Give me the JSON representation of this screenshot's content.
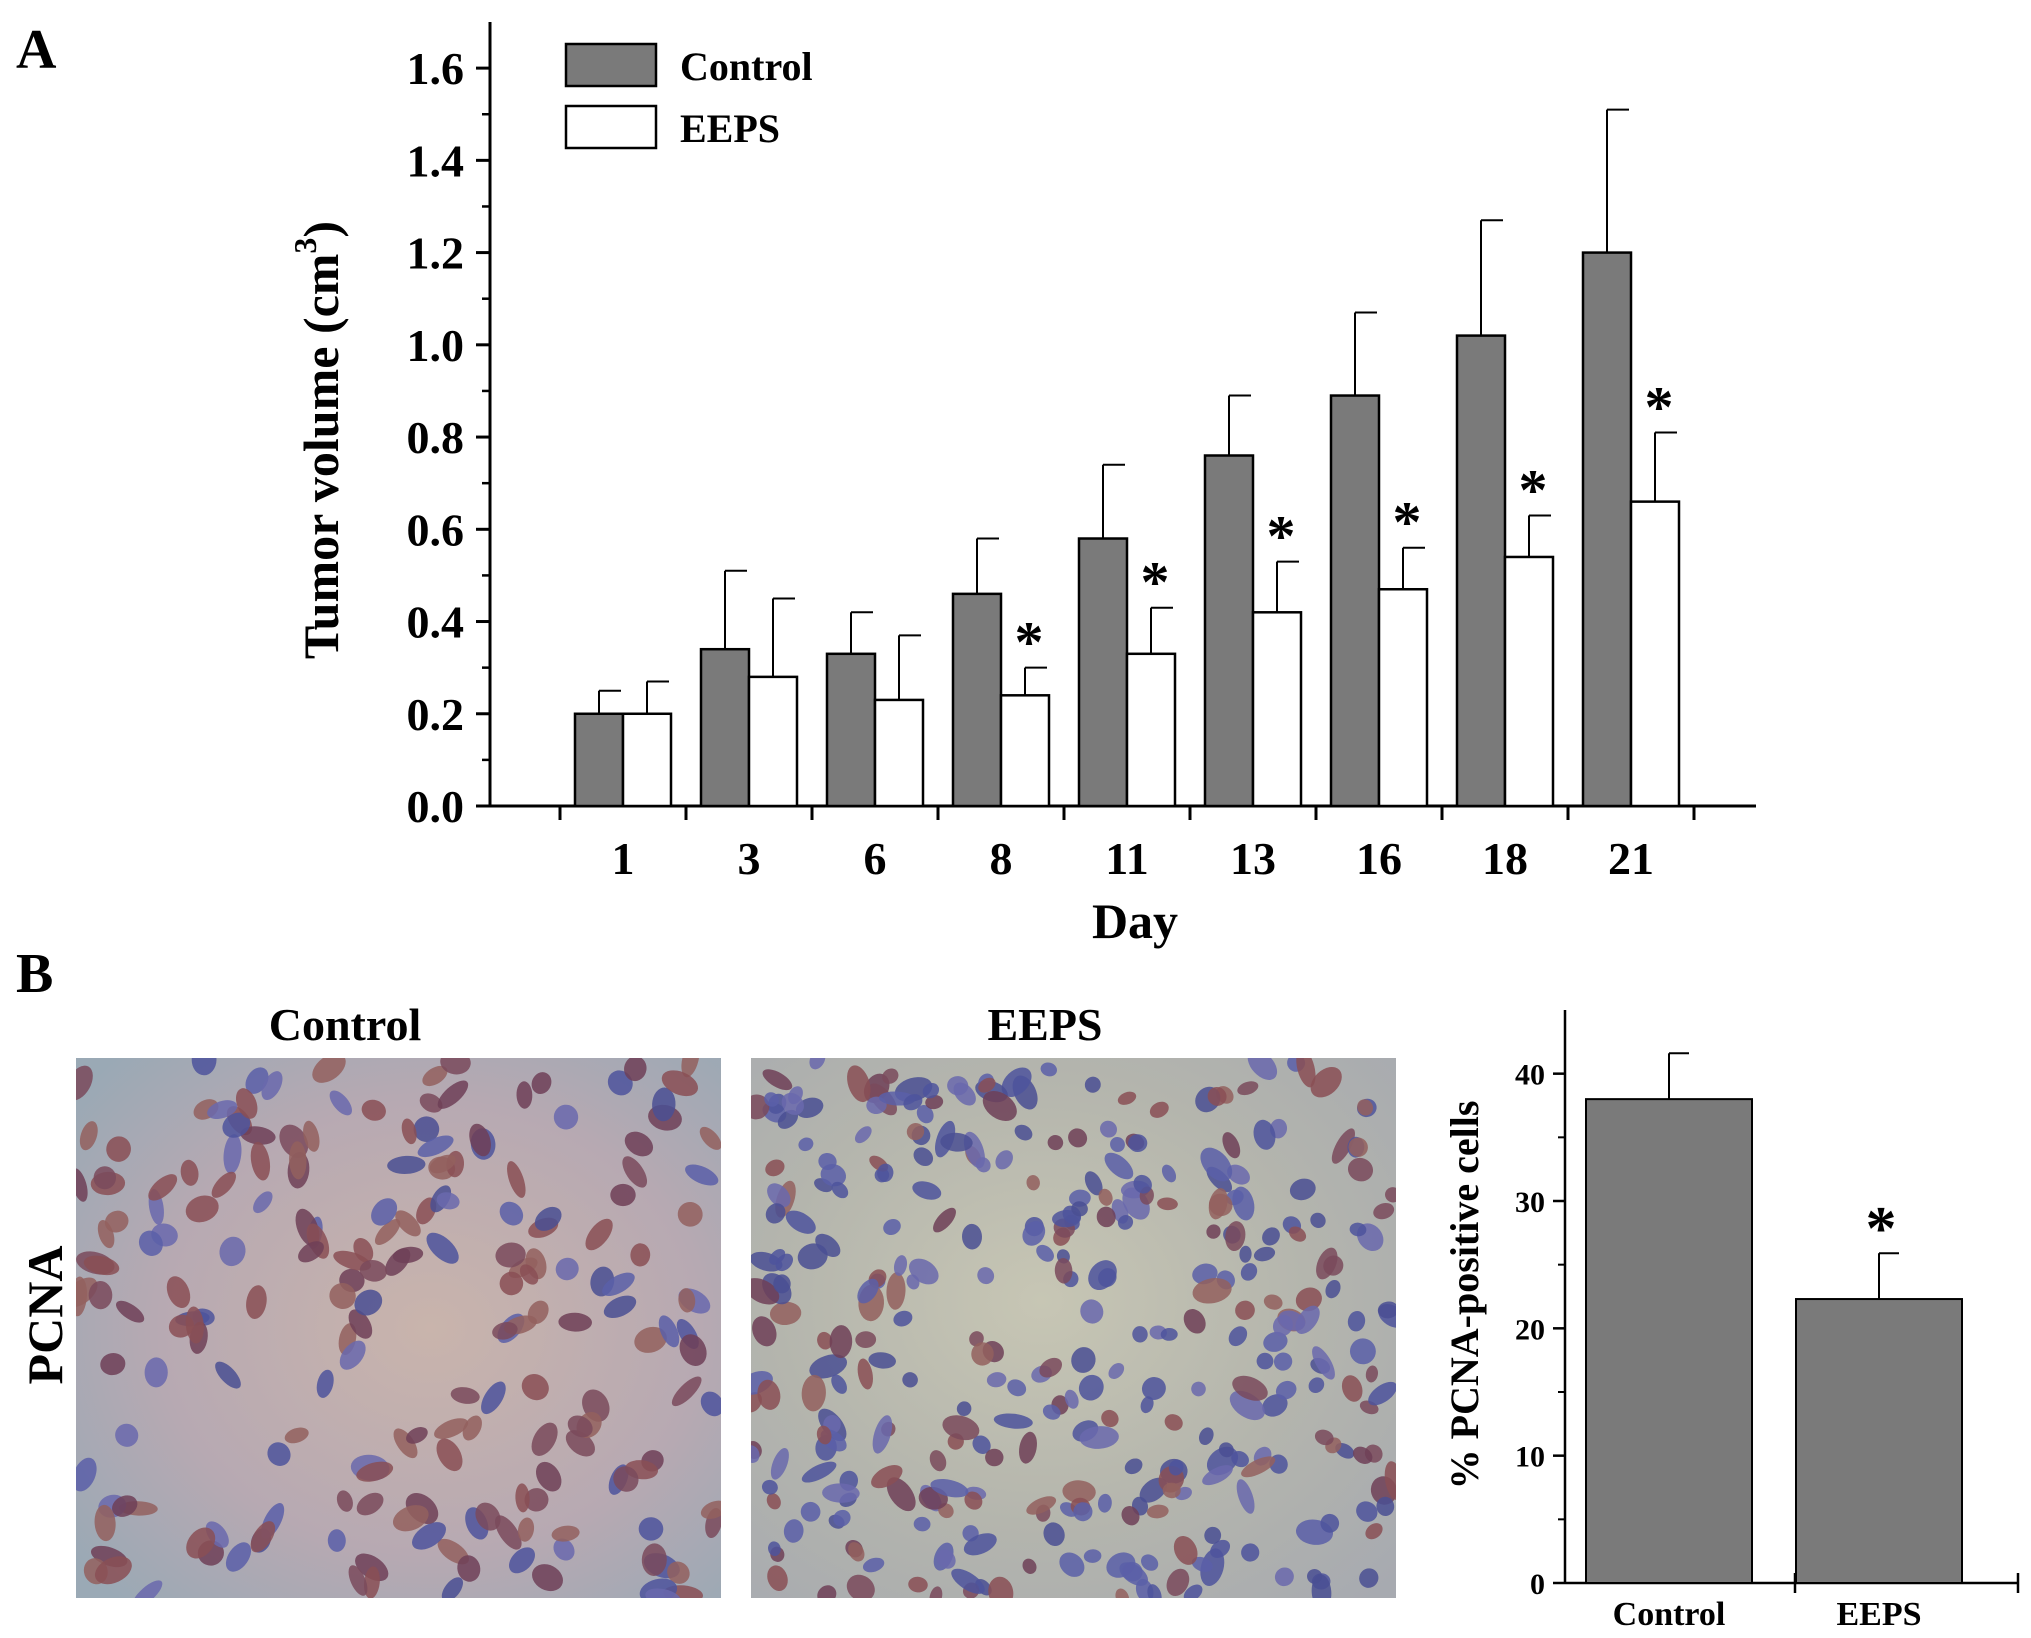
{
  "panel_a": {
    "letter": "A",
    "chart_data": {
      "type": "bar",
      "xlabel": "Day",
      "ylabel": "Tumor volume (cm",
      "ylabel_superscript": "3",
      "ylabel_close": ")",
      "ylim": [
        0.0,
        1.7
      ],
      "yticks": [
        "0.0",
        "0.2",
        "0.4",
        "0.6",
        "0.8",
        "1.0",
        "1.2",
        "1.4",
        "1.6"
      ],
      "categories": [
        "1",
        "3",
        "6",
        "8",
        "11",
        "13",
        "16",
        "18",
        "21"
      ],
      "legend_position": "top-left",
      "series": [
        {
          "name": "Control",
          "color": "#7a7a7a",
          "values": [
            0.2,
            0.34,
            0.33,
            0.46,
            0.58,
            0.76,
            0.89,
            1.02,
            1.2
          ],
          "errors": [
            0.05,
            0.17,
            0.09,
            0.12,
            0.16,
            0.13,
            0.18,
            0.25,
            0.31
          ]
        },
        {
          "name": "EEPS",
          "color": "#ffffff",
          "values": [
            0.2,
            0.28,
            0.23,
            0.24,
            0.33,
            0.42,
            0.47,
            0.54,
            0.66
          ],
          "errors": [
            0.07,
            0.17,
            0.14,
            0.06,
            0.1,
            0.11,
            0.09,
            0.09,
            0.15
          ]
        }
      ],
      "significance_marker": "*",
      "significant": [
        false,
        false,
        false,
        true,
        true,
        true,
        true,
        true,
        true
      ]
    }
  },
  "panel_b": {
    "letter": "B",
    "row_label": "PCNA",
    "images": [
      {
        "title": "Control",
        "stain_level": 0.7
      },
      {
        "title": "EEPS",
        "stain_level": 0.35
      }
    ],
    "chart_data": {
      "type": "bar",
      "xlabel": "",
      "ylabel": "% PCNA-positive cells",
      "ylim": [
        0,
        45
      ],
      "yticks": [
        "0",
        "10",
        "20",
        "30",
        "40"
      ],
      "categories": [
        "Control",
        "EEPS"
      ],
      "series": [
        {
          "color": "#7a7a7a",
          "values": [
            38.0,
            22.3
          ],
          "errors": [
            3.6,
            3.6
          ]
        }
      ],
      "significance_marker": "*",
      "significant": [
        false,
        true
      ]
    }
  }
}
